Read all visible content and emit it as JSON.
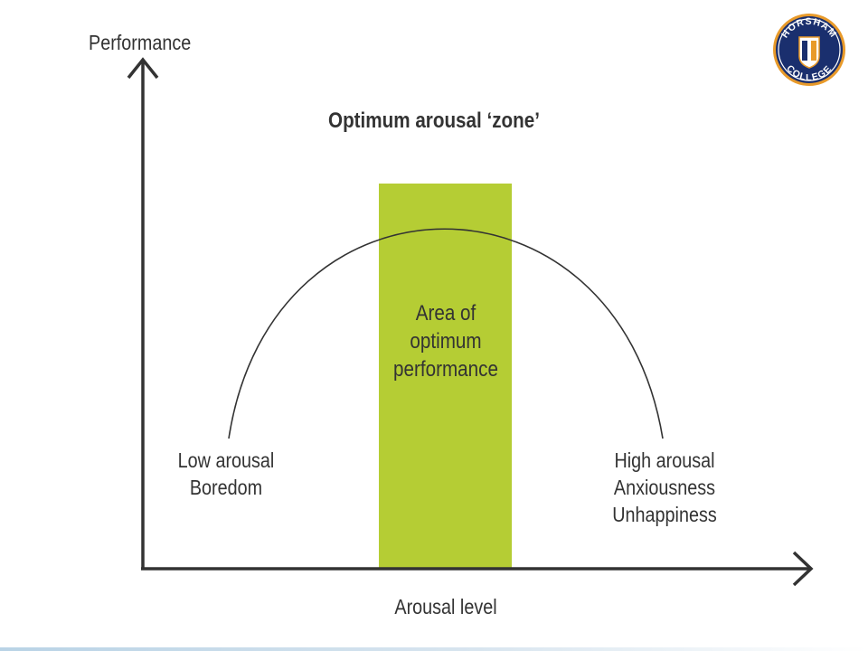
{
  "axes": {
    "y_label": "Performance",
    "x_label": "Arousal level"
  },
  "zone_title": "Optimum arousal ‘zone’",
  "zone": {
    "lines": [
      "Area of",
      "optimum",
      "performance"
    ],
    "color": "#b5cd34"
  },
  "low": {
    "lines": [
      "Low arousal",
      "Boredom"
    ]
  },
  "high": {
    "lines": [
      "High arousal",
      "Anxiousness",
      "Unhappiness"
    ]
  },
  "logo": {
    "top_text": "HORSHAM",
    "bottom_text": "COLLEGE",
    "ring_color": "#1a2f6e",
    "accent_color": "#f0a020"
  }
}
